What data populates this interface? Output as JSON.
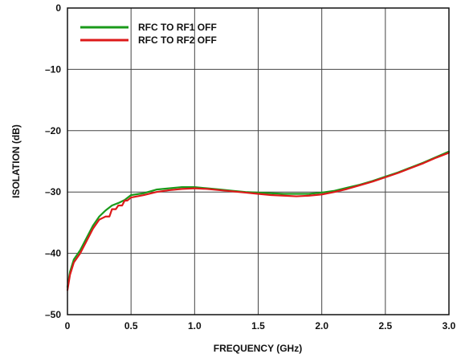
{
  "chart_data": {
    "type": "line",
    "xlabel": "FREQUENCY (GHz)",
    "ylabel": "ISOLATION (dB)",
    "xlim": [
      0,
      3.0
    ],
    "ylim": [
      -50,
      0
    ],
    "x_ticks": [
      "0",
      "0.5",
      "1.0",
      "1.5",
      "2.0",
      "2.5",
      "3.0"
    ],
    "y_ticks": [
      "0",
      "–10",
      "–20",
      "–30",
      "–40",
      "–50"
    ],
    "x_tick_values": [
      0,
      0.5,
      1.0,
      1.5,
      2.0,
      2.5,
      3.0
    ],
    "y_tick_values": [
      0,
      -10,
      -20,
      -30,
      -40,
      -50
    ],
    "grid": true,
    "legend_position": "top-left",
    "series": [
      {
        "name": "RFC TO RF1 OFF",
        "color": "#1a9a1a",
        "x": [
          0,
          0.02,
          0.05,
          0.1,
          0.15,
          0.2,
          0.25,
          0.3,
          0.35,
          0.4,
          0.45,
          0.5,
          0.6,
          0.7,
          0.8,
          0.9,
          1.0,
          1.1,
          1.2,
          1.3,
          1.4,
          1.5,
          1.6,
          1.7,
          1.8,
          1.9,
          2.0,
          2.1,
          2.2,
          2.3,
          2.4,
          2.5,
          2.6,
          2.7,
          2.8,
          2.9,
          3.0
        ],
        "values": [
          -45.5,
          -43.0,
          -41.0,
          -39.5,
          -37.5,
          -35.5,
          -34.0,
          -33.0,
          -32.2,
          -31.8,
          -31.3,
          -30.5,
          -30.2,
          -29.6,
          -29.4,
          -29.2,
          -29.2,
          -29.4,
          -29.6,
          -29.8,
          -30.0,
          -30.1,
          -30.2,
          -30.3,
          -30.3,
          -30.3,
          -30.1,
          -29.8,
          -29.3,
          -28.8,
          -28.2,
          -27.5,
          -26.8,
          -26.0,
          -25.2,
          -24.3,
          -23.4
        ]
      },
      {
        "name": "RFC TO RF2 OFF",
        "color": "#dd1a1a",
        "x": [
          0,
          0.02,
          0.05,
          0.1,
          0.15,
          0.2,
          0.25,
          0.3,
          0.33,
          0.35,
          0.38,
          0.4,
          0.43,
          0.45,
          0.47,
          0.5,
          0.6,
          0.7,
          0.8,
          0.9,
          1.0,
          1.1,
          1.2,
          1.3,
          1.4,
          1.5,
          1.6,
          1.7,
          1.8,
          1.9,
          2.0,
          2.1,
          2.2,
          2.3,
          2.4,
          2.5,
          2.6,
          2.7,
          2.8,
          2.9,
          3.0
        ],
        "values": [
          -46.0,
          -43.5,
          -41.5,
          -40.0,
          -38.0,
          -36.0,
          -34.5,
          -34.0,
          -34.0,
          -32.8,
          -32.8,
          -32.2,
          -32.2,
          -31.4,
          -31.4,
          -30.9,
          -30.5,
          -30.0,
          -29.7,
          -29.5,
          -29.4,
          -29.5,
          -29.7,
          -29.9,
          -30.1,
          -30.3,
          -30.5,
          -30.6,
          -30.7,
          -30.6,
          -30.4,
          -30.0,
          -29.5,
          -28.9,
          -28.3,
          -27.6,
          -26.9,
          -26.1,
          -25.3,
          -24.4,
          -23.6
        ]
      }
    ]
  }
}
